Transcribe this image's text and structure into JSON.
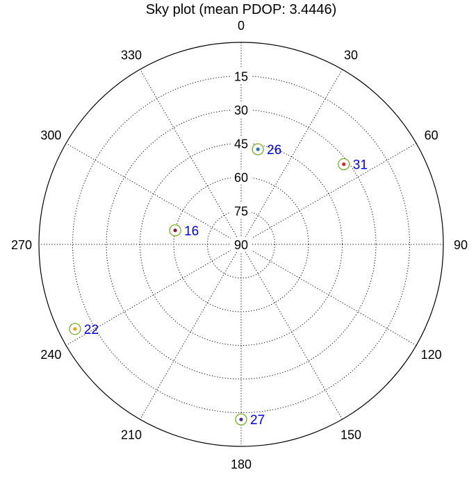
{
  "chart_data": {
    "type": "scatter",
    "projection": "polar",
    "title": "Sky plot (mean PDOP: 3.4446)",
    "azimuth_ticks": [
      0,
      30,
      60,
      90,
      120,
      150,
      180,
      210,
      240,
      270,
      300,
      330
    ],
    "azimuth_tick_labels": [
      "0",
      "30",
      "60",
      "90",
      "120",
      "150",
      "180",
      "210",
      "240",
      "270",
      "300",
      "330"
    ],
    "elevation_ticks": [
      15,
      30,
      45,
      60,
      75,
      90
    ],
    "elevation_tick_labels": [
      "15",
      "30",
      "45",
      "60",
      "75",
      "90"
    ],
    "elevation_range": [
      0,
      90
    ],
    "grid": true,
    "satellites": [
      {
        "prn": "26",
        "azimuth": 10,
        "elevation": 47,
        "dot_color": "#1f77b4"
      },
      {
        "prn": "31",
        "azimuth": 52,
        "elevation": 32,
        "dot_color": "#d62728"
      },
      {
        "prn": "16",
        "azimuth": 282,
        "elevation": 60,
        "dot_color": "#8b1a3a"
      },
      {
        "prn": "22",
        "azimuth": 243,
        "elevation": 7,
        "dot_color": "#e8a317"
      },
      {
        "prn": "27",
        "azimuth": 180,
        "elevation": 12,
        "dot_color": "#4b2a8a"
      }
    ]
  },
  "colors": {
    "ring": "#6aa61c",
    "label": "#0000ee",
    "grid": "#000000"
  }
}
